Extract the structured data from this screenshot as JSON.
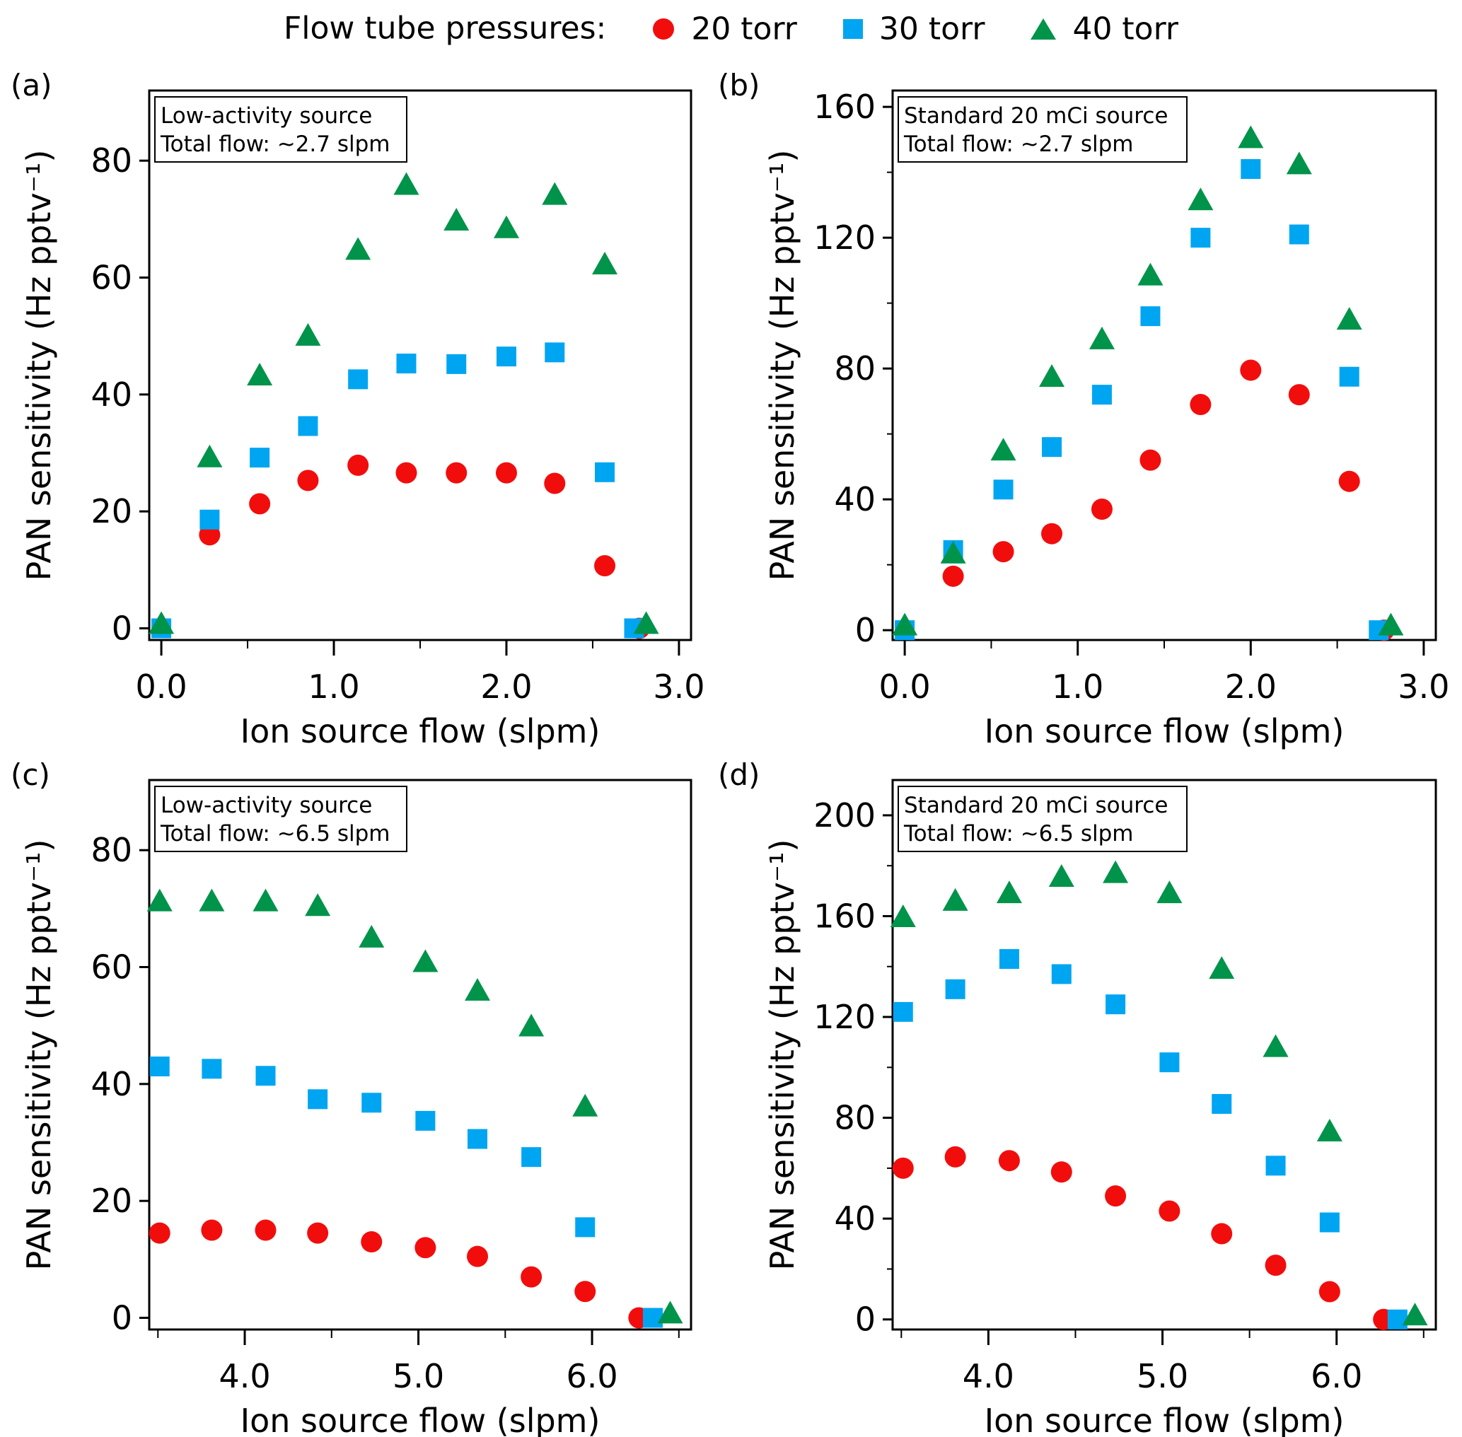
{
  "legend": {
    "title": "Flow tube pressures:",
    "entries": [
      {
        "label": "20 torr",
        "marker": "circle",
        "color": "#f20d0d"
      },
      {
        "label": "30 torr",
        "marker": "square",
        "color": "#00a5f2"
      },
      {
        "label": "40 torr",
        "marker": "triangle",
        "color": "#00934a"
      }
    ]
  },
  "chart_data": [
    {
      "type": "scatter",
      "panel": "(a)",
      "annotation": [
        "Low-activity source",
        "Total flow: ~2.7 slpm"
      ],
      "xlabel": "Ion source flow (slpm)",
      "ylabel": "PAN sensitivity (Hz pptv⁻¹)",
      "xlim": [
        -0.07,
        3.07
      ],
      "ylim": [
        -2,
        92
      ],
      "xticks": [
        0.0,
        1.0,
        2.0,
        3.0
      ],
      "xtick_labels": [
        "0.0",
        "1.0",
        "2.0",
        "3.0"
      ],
      "xminor": [
        0.5,
        1.5,
        2.5
      ],
      "yticks": [
        0,
        20,
        40,
        60,
        80
      ],
      "yminor": [],
      "series": [
        {
          "name": "20 torr",
          "x": [
            0.28,
            0.57,
            0.85,
            1.14,
            1.42,
            1.71,
            2.0,
            2.28,
            2.57,
            2.77
          ],
          "y": [
            16,
            21.3,
            25.3,
            27.9,
            26.6,
            26.6,
            26.6,
            24.8,
            10.7,
            0
          ]
        },
        {
          "name": "30 torr",
          "x": [
            0.0,
            0.28,
            0.57,
            0.85,
            1.14,
            1.42,
            1.71,
            2.0,
            2.28,
            2.57,
            2.74
          ],
          "y": [
            0,
            18.6,
            29.2,
            34.6,
            42.6,
            45.3,
            45.2,
            46.5,
            47.2,
            26.7,
            0
          ]
        },
        {
          "name": "40 torr",
          "x": [
            0.0,
            0.28,
            0.57,
            0.85,
            1.14,
            1.42,
            1.71,
            2.0,
            2.28,
            2.57,
            2.81
          ],
          "y": [
            0.5,
            29,
            43,
            49.8,
            64.5,
            75.6,
            69.5,
            68.2,
            73.9,
            62,
            0.5
          ]
        }
      ]
    },
    {
      "type": "scatter",
      "panel": "(b)",
      "annotation": [
        "Standard 20 mCi source",
        "Total flow: ~2.7 slpm"
      ],
      "xlabel": "Ion source flow (slpm)",
      "ylabel": "PAN sensitivity (Hz pptv⁻¹)",
      "xlim": [
        -0.07,
        3.07
      ],
      "ylim": [
        -3,
        165
      ],
      "xticks": [
        0.0,
        1.0,
        2.0,
        3.0
      ],
      "xtick_labels": [
        "0.0",
        "1.0",
        "2.0",
        "3.0"
      ],
      "xminor": [
        0.5,
        1.5,
        2.5
      ],
      "yticks": [
        0,
        40,
        80,
        120,
        160
      ],
      "yminor": [
        20,
        60,
        100,
        140
      ],
      "series": [
        {
          "name": "20 torr",
          "x": [
            0.28,
            0.57,
            0.85,
            1.14,
            1.42,
            1.71,
            2.0,
            2.28,
            2.57,
            2.77
          ],
          "y": [
            16.5,
            24,
            29.5,
            37,
            52,
            69,
            79.5,
            72,
            45.5,
            0
          ]
        },
        {
          "name": "30 torr",
          "x": [
            0.0,
            0.28,
            0.57,
            0.85,
            1.14,
            1.42,
            1.71,
            2.0,
            2.28,
            2.57,
            2.74
          ],
          "y": [
            0,
            24.5,
            43,
            56,
            72,
            96,
            120,
            141,
            121,
            77.5,
            0
          ]
        },
        {
          "name": "40 torr",
          "x": [
            0.0,
            0.28,
            0.57,
            0.85,
            1.14,
            1.42,
            1.71,
            2.0,
            2.28,
            2.57,
            2.81
          ],
          "y": [
            1,
            23,
            54.5,
            77,
            88.5,
            108,
            131,
            150,
            142,
            94.5,
            1
          ]
        }
      ]
    },
    {
      "type": "scatter",
      "panel": "(c)",
      "annotation": [
        "Low-activity source",
        "Total flow: ~6.5 slpm"
      ],
      "xlabel": "Ion source flow (slpm)",
      "ylabel": "PAN sensitivity (Hz pptv⁻¹)",
      "xlim": [
        3.45,
        6.57
      ],
      "ylim": [
        -2,
        92
      ],
      "xticks": [
        4.0,
        5.0,
        6.0
      ],
      "xtick_labels": [
        "4.0",
        "5.0",
        "6.0"
      ],
      "xminor": [
        3.5,
        4.5,
        5.5,
        6.5
      ],
      "yticks": [
        0,
        20,
        40,
        60,
        80
      ],
      "yminor": [],
      "series": [
        {
          "name": "20 torr",
          "x": [
            3.51,
            3.81,
            4.12,
            4.42,
            4.73,
            5.04,
            5.34,
            5.65,
            5.96,
            6.27
          ],
          "y": [
            14.5,
            15,
            15,
            14.5,
            13,
            12,
            10.5,
            7,
            4.5,
            0
          ]
        },
        {
          "name": "30 torr",
          "x": [
            3.51,
            3.81,
            4.12,
            4.42,
            4.73,
            5.04,
            5.34,
            5.65,
            5.96,
            6.35
          ],
          "y": [
            43,
            42.6,
            41.4,
            37.4,
            36.8,
            33.7,
            30.6,
            27.5,
            15.5,
            0
          ]
        },
        {
          "name": "40 torr",
          "x": [
            3.51,
            3.81,
            4.12,
            4.42,
            4.73,
            5.04,
            5.34,
            5.65,
            5.96,
            6.45
          ],
          "y": [
            71,
            71,
            71,
            70.2,
            64.8,
            60.6,
            55.7,
            49.6,
            35.9,
            0.5
          ]
        }
      ]
    },
    {
      "type": "scatter",
      "panel": "(d)",
      "annotation": [
        "Standard 20 mCi source",
        "Total flow: ~6.5 slpm"
      ],
      "xlabel": "Ion source flow (slpm)",
      "ylabel": "PAN sensitivity (Hz pptv⁻¹)",
      "xlim": [
        3.45,
        6.57
      ],
      "ylim": [
        -4,
        214
      ],
      "xticks": [
        4.0,
        5.0,
        6.0
      ],
      "xtick_labels": [
        "4.0",
        "5.0",
        "6.0"
      ],
      "xminor": [
        3.5,
        4.5,
        5.5,
        6.5
      ],
      "yticks": [
        0,
        40,
        80,
        120,
        160,
        200
      ],
      "yminor": [
        20,
        60,
        100,
        140,
        180
      ],
      "series": [
        {
          "name": "20 torr",
          "x": [
            3.51,
            3.81,
            4.12,
            4.42,
            4.73,
            5.04,
            5.34,
            5.65,
            5.96,
            6.27
          ],
          "y": [
            60,
            64.5,
            63,
            58.5,
            49,
            43,
            34,
            21.5,
            11,
            0
          ]
        },
        {
          "name": "30 torr",
          "x": [
            3.51,
            3.81,
            4.12,
            4.42,
            4.73,
            5.04,
            5.34,
            5.65,
            5.96,
            6.35
          ],
          "y": [
            122,
            131,
            143,
            137,
            125,
            102,
            85.5,
            61,
            38.5,
            0
          ]
        },
        {
          "name": "40 torr",
          "x": [
            3.51,
            3.81,
            4.12,
            4.42,
            4.73,
            5.04,
            5.34,
            5.65,
            5.96,
            6.45
          ],
          "y": [
            159,
            165.5,
            168.5,
            175,
            176.5,
            168.5,
            138.5,
            107.5,
            74,
            1
          ]
        }
      ]
    }
  ]
}
